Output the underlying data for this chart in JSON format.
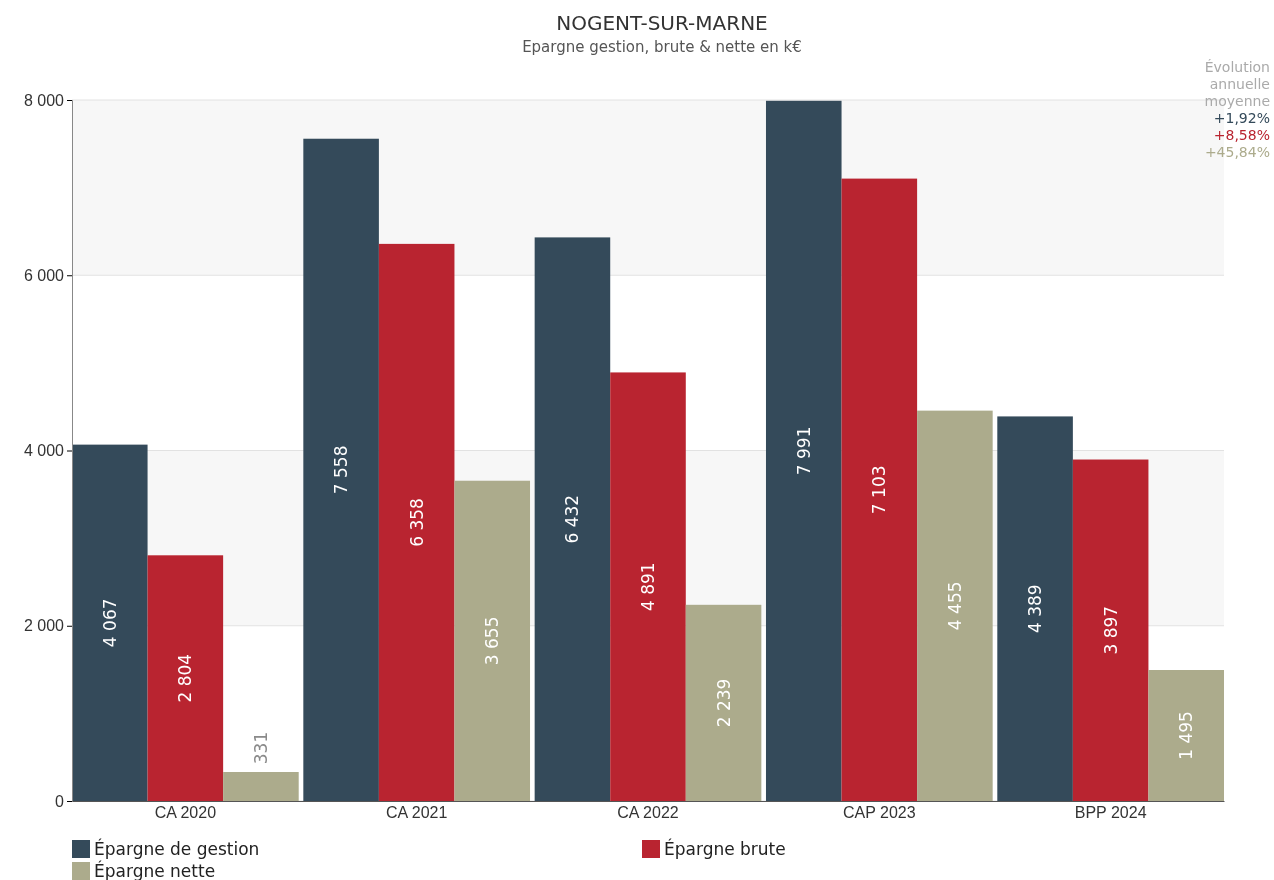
{
  "chart_data": {
    "type": "bar",
    "title": "NOGENT-SUR-MARNE",
    "subtitle": "Epargne gestion, brute & nette en k€",
    "categories": [
      "CA 2020",
      "CA 2021",
      "CA 2022",
      "CAP 2023",
      "BPP 2024"
    ],
    "series": [
      {
        "name": "Épargne de gestion",
        "color": "#344a5a",
        "values": [
          4067,
          7558,
          6432,
          7991,
          4389
        ],
        "value_labels": [
          "4 067",
          "7 558",
          "6 432",
          "7 991",
          "4 389"
        ]
      },
      {
        "name": "Épargne brute",
        "color": "#b92430",
        "values": [
          2804,
          6358,
          4891,
          7103,
          3897
        ],
        "value_labels": [
          "2 804",
          "6 358",
          "4 891",
          "7 103",
          "3 897"
        ]
      },
      {
        "name": "Épargne nette",
        "color": "#acab8c",
        "values": [
          331,
          3655,
          2239,
          4455,
          1495
        ],
        "value_labels": [
          "331",
          "3 655",
          "2 239",
          "4 455",
          "1 495"
        ]
      }
    ],
    "ylim": [
      0,
      8000
    ],
    "yticks": [
      0,
      {
        "value": 2000,
        "label": "2 000"
      },
      {
        "value": 4000,
        "label": "4 000"
      },
      {
        "value": 6000,
        "label": "6 000"
      },
      {
        "value": 8000,
        "label": "8 000"
      }
    ],
    "grid": "y",
    "legend": "bottom",
    "annotations": [
      "Évolution annuelle moyenne",
      "+1,92%",
      "+8,58%",
      "+45,84%"
    ]
  }
}
